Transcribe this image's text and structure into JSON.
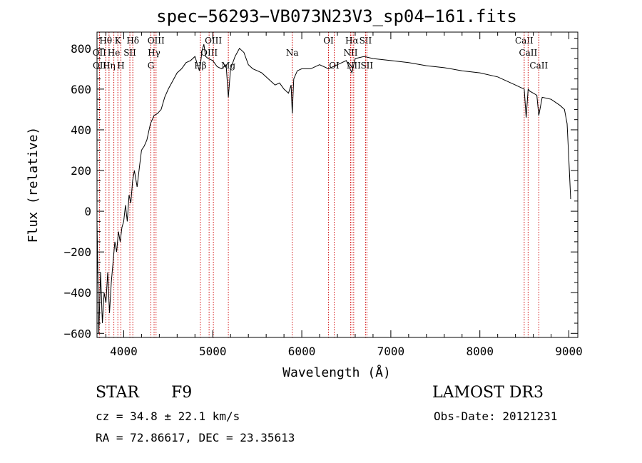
{
  "chart_data": {
    "type": "line",
    "title": "spec−56293−VB073N23V3_sp04−161.fits",
    "xlabel": "Wavelength (Å)",
    "ylabel": "Flux (relative)",
    "xlim": [
      3700,
      9100
    ],
    "ylim": [
      -620,
      880
    ],
    "xticks": [
      4000,
      5000,
      6000,
      7000,
      8000,
      9000
    ],
    "yticks": [
      -600,
      -400,
      -200,
      0,
      200,
      400,
      600,
      800
    ],
    "ytick_labels": [
      "−600",
      "−400",
      "−200",
      "0",
      "200",
      "400",
      "600",
      "800"
    ],
    "series": [
      {
        "name": "flux",
        "x": [
          3700,
          3720,
          3740,
          3760,
          3780,
          3800,
          3820,
          3840,
          3860,
          3880,
          3900,
          3920,
          3940,
          3960,
          3980,
          4000,
          4020,
          4040,
          4060,
          4080,
          4100,
          4120,
          4150,
          4180,
          4200,
          4230,
          4260,
          4300,
          4340,
          4380,
          4420,
          4460,
          4500,
          4550,
          4600,
          4650,
          4700,
          4750,
          4800,
          4850,
          4861,
          4880,
          4900,
          4920,
          4950,
          5000,
          5050,
          5100,
          5150,
          5175,
          5200,
          5250,
          5300,
          5350,
          5400,
          5450,
          5500,
          5550,
          5600,
          5650,
          5700,
          5750,
          5800,
          5850,
          5880,
          5893,
          5910,
          5950,
          6000,
          6100,
          6200,
          6300,
          6400,
          6500,
          6563,
          6600,
          6700,
          6800,
          6900,
          7000,
          7200,
          7400,
          7600,
          7800,
          8000,
          8200,
          8400,
          8498,
          8520,
          8542,
          8560,
          8600,
          8640,
          8662,
          8700,
          8800,
          8900,
          8950,
          8980,
          9000,
          9020
        ],
        "y": [
          -50,
          -600,
          -300,
          -550,
          -400,
          -450,
          -300,
          -500,
          -350,
          -250,
          -150,
          -200,
          -100,
          -150,
          -80,
          -50,
          30,
          -50,
          80,
          40,
          150,
          200,
          120,
          230,
          300,
          320,
          350,
          430,
          470,
          480,
          500,
          560,
          600,
          640,
          680,
          700,
          730,
          740,
          760,
          690,
          720,
          790,
          820,
          760,
          750,
          740,
          710,
          700,
          720,
          560,
          700,
          760,
          800,
          780,
          720,
          700,
          690,
          680,
          660,
          640,
          620,
          630,
          600,
          580,
          620,
          480,
          650,
          690,
          700,
          700,
          720,
          700,
          720,
          740,
          680,
          750,
          760,
          750,
          745,
          740,
          730,
          715,
          705,
          690,
          680,
          660,
          620,
          600,
          460,
          600,
          590,
          580,
          570,
          470,
          560,
          550,
          520,
          500,
          430,
          250,
          60
        ]
      }
    ],
    "line_markers": [
      {
        "name": "Hθ",
        "x": 3798,
        "row": 0
      },
      {
        "name": "OII",
        "x": 3727,
        "row": 1
      },
      {
        "name": "OII",
        "x": 3729,
        "row": 2
      },
      {
        "name": "Hη",
        "x": 3835,
        "row": 2
      },
      {
        "name": "He",
        "x": 3889,
        "row": 1
      },
      {
        "name": "K",
        "x": 3934,
        "row": 0
      },
      {
        "name": "H",
        "x": 3968,
        "row": 2
      },
      {
        "name": "SII",
        "x": 4069,
        "row": 1
      },
      {
        "name": "Hδ",
        "x": 4102,
        "row": 0
      },
      {
        "name": "G",
        "x": 4305,
        "row": 2
      },
      {
        "name": "Hγ",
        "x": 4341,
        "row": 1
      },
      {
        "name": "OIII",
        "x": 4363,
        "row": 0
      },
      {
        "name": "Hβ",
        "x": 4861,
        "row": 2
      },
      {
        "name": "OIII",
        "x": 4959,
        "row": 1
      },
      {
        "name": "OIII",
        "x": 5007,
        "row": 0
      },
      {
        "name": "Mg",
        "x": 5175,
        "row": 2
      },
      {
        "name": "Na",
        "x": 5893,
        "row": 1
      },
      {
        "name": "OI",
        "x": 6300,
        "row": 0
      },
      {
        "name": "OI",
        "x": 6364,
        "row": 2
      },
      {
        "name": "NII",
        "x": 6548,
        "row": 1
      },
      {
        "name": "Hα",
        "x": 6563,
        "row": 0
      },
      {
        "name": "NII",
        "x": 6583,
        "row": 2
      },
      {
        "name": "SII",
        "x": 6716,
        "row": 0
      },
      {
        "name": "SII",
        "x": 6731,
        "row": 2
      },
      {
        "name": "CaII",
        "x": 8498,
        "row": 0
      },
      {
        "name": "CaII",
        "x": 8542,
        "row": 1
      },
      {
        "name": "CaII",
        "x": 8662,
        "row": 2
      }
    ]
  },
  "info": {
    "object_class": "STAR",
    "subclass": "F9",
    "survey": "LAMOST DR3",
    "redshift": "cz = 34.8 ± 22.1 km/s",
    "obs_date": "Obs-Date: 20121231",
    "coords": "RA =  72.86617, DEC =  23.35613"
  }
}
